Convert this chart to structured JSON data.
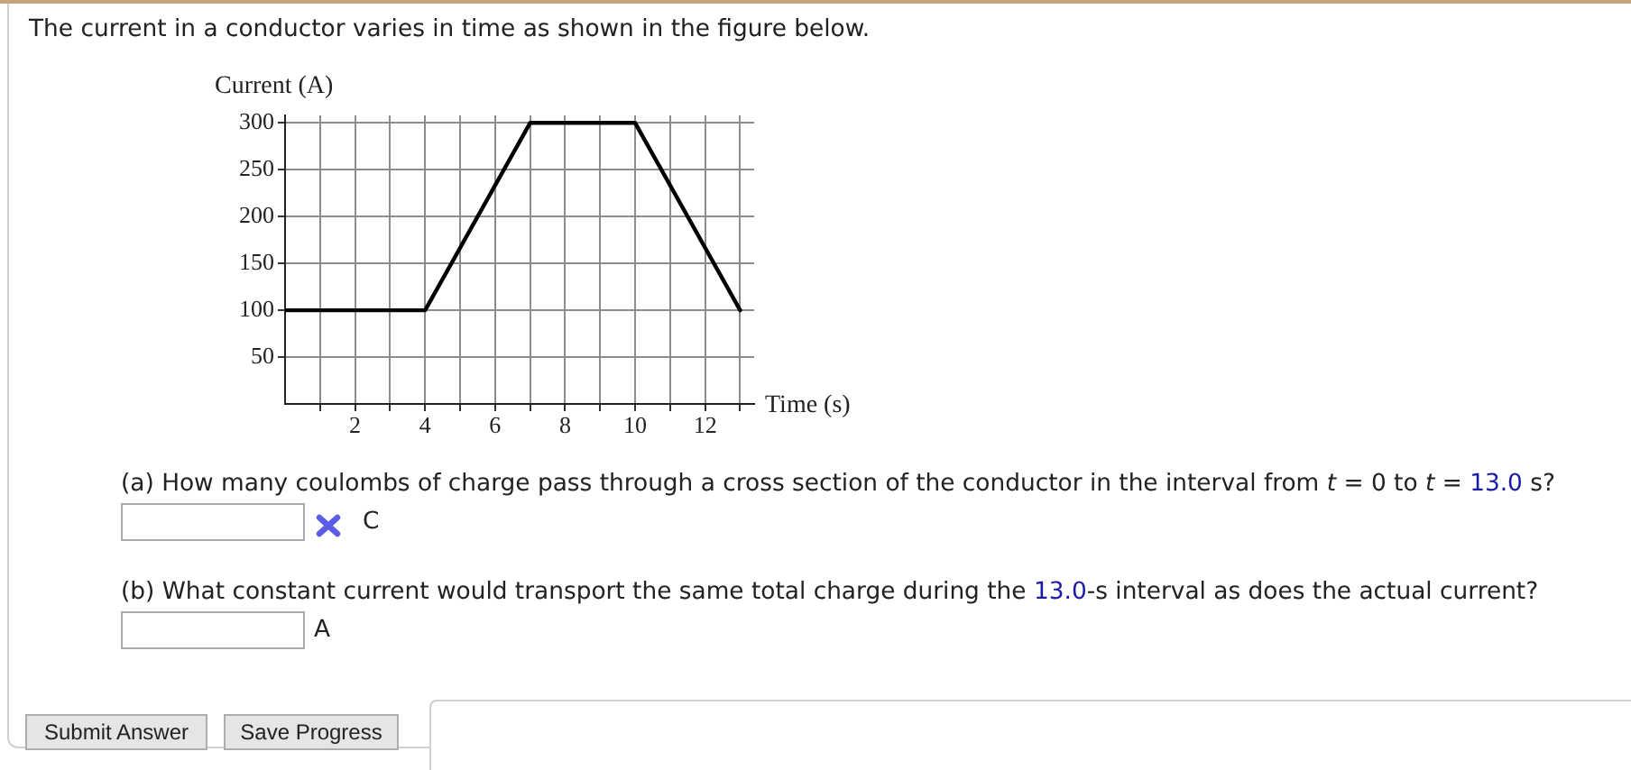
{
  "chart_data": {
    "type": "line",
    "title": "The current in a conductor varies in time as shown in the figure below.",
    "xlabel": "Time (s)",
    "ylabel": "Current (A)",
    "x": [
      0,
      4,
      7,
      10,
      13
    ],
    "values": [
      100,
      100,
      300,
      300,
      100
    ],
    "color": "#000000",
    "xlim": [
      0,
      13.4
    ],
    "ylim": [
      0,
      308
    ],
    "xticks": [
      {
        "value": 1,
        "label": null
      },
      2,
      {
        "value": 3,
        "label": null
      },
      4,
      {
        "value": 5,
        "label": null
      },
      6,
      {
        "value": 7,
        "label": null
      },
      8,
      {
        "value": 9,
        "label": null
      },
      10,
      {
        "value": 11,
        "label": null
      },
      12,
      {
        "value": 13,
        "label": null
      }
    ],
    "yticks": [
      50,
      100,
      150,
      200,
      250,
      300
    ],
    "grid": true,
    "marker": "none",
    "line_style": "solid",
    "annotations": [
      "(a) How many coulombs of charge pass through a cross section of the conductor in the interval from t = 0 to t = 13.0 s?",
      "C",
      "(b) What constant current would transport the same total charge during the 13.0-s interval as does the actual current?",
      "A",
      "Submit Answer",
      "Save Progress"
    ]
  }
}
